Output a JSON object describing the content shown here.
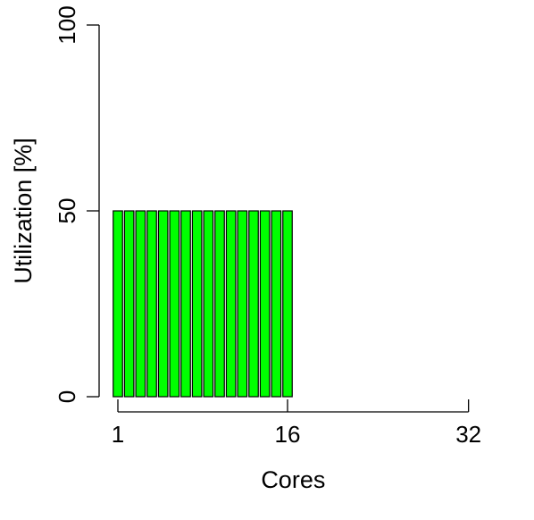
{
  "chart_data": {
    "type": "bar",
    "xlabel": "Cores",
    "ylabel": "Utilization [%]",
    "ylim": [
      0,
      100
    ],
    "xlim": [
      1,
      32
    ],
    "x_ticks": [
      {
        "value": 1,
        "label": "1"
      },
      {
        "value": 16,
        "label": "16"
      },
      {
        "value": 32,
        "label": "32"
      }
    ],
    "y_ticks": [
      {
        "value": 0,
        "label": "0"
      },
      {
        "value": 50,
        "label": "50"
      },
      {
        "value": 100,
        "label": "100"
      }
    ],
    "categories": [
      1,
      2,
      3,
      4,
      5,
      6,
      7,
      8,
      9,
      10,
      11,
      12,
      13,
      14,
      15,
      16,
      17,
      18,
      19,
      20,
      21,
      22,
      23,
      24,
      25,
      26,
      27,
      28,
      29,
      30,
      31,
      32
    ],
    "values": [
      50,
      50,
      50,
      50,
      50,
      50,
      50,
      50,
      50,
      50,
      50,
      50,
      50,
      50,
      50,
      50,
      0,
      0,
      0,
      0,
      0,
      0,
      0,
      0,
      0,
      0,
      0,
      0,
      0,
      0,
      0,
      0
    ],
    "bar_color": "#00ff00",
    "bar_border_color": "#000000",
    "grid": false
  }
}
